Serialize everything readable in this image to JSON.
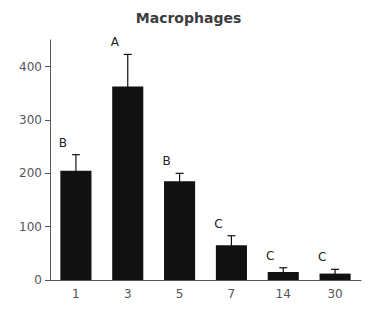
{
  "chart_data": {
    "type": "bar",
    "title": "Macrophages",
    "categories": [
      "1",
      "3",
      "5",
      "7",
      "14",
      "30"
    ],
    "values": [
      205,
      363,
      185,
      65,
      15,
      12
    ],
    "errors": [
      30,
      60,
      15,
      18,
      8,
      8
    ],
    "letters": [
      "B",
      "A",
      "B",
      "C",
      "C",
      "C"
    ],
    "color": "#111111",
    "ylim": [
      0,
      450
    ],
    "yticks": [
      0,
      100,
      200,
      300,
      400
    ],
    "grid": false
  }
}
